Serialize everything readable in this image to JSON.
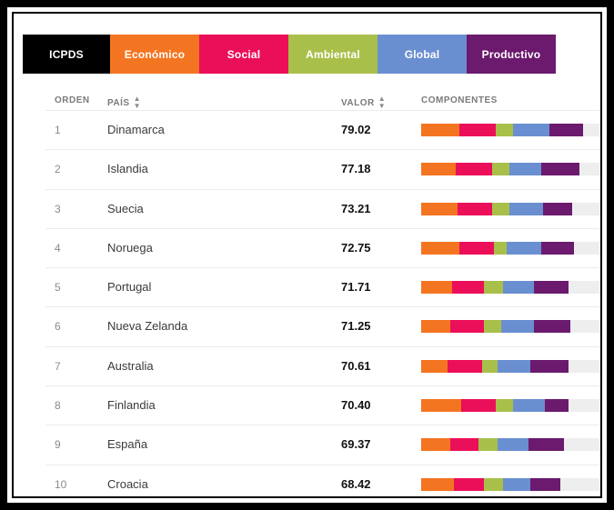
{
  "tabs": [
    {
      "label": "ICPDS",
      "color": "#000000",
      "width": 96
    },
    {
      "label": "Económico",
      "color": "#f47521",
      "width": 98
    },
    {
      "label": "Social",
      "color": "#eb0f5a",
      "width": 98
    },
    {
      "label": "Ambiental",
      "color": "#a8c04a",
      "width": 98
    },
    {
      "label": "Global",
      "color": "#6a8fd1",
      "width": 98
    },
    {
      "label": "Productivo",
      "color": "#6b1a6e",
      "width": 98
    }
  ],
  "headers": {
    "orden": "ORDEN",
    "pais": "PAÍS",
    "valor": "VALOR",
    "componentes": "COMPONENTES"
  },
  "component_colors": [
    "#f47521",
    "#eb0f5a",
    "#a8c04a",
    "#6a8fd1",
    "#6b1a6e"
  ],
  "rows": [
    {
      "rank": "1",
      "country": "Dinamarca",
      "value": "79.02",
      "components": [
        0.2,
        0.19,
        0.09,
        0.19,
        0.18
      ]
    },
    {
      "rank": "2",
      "country": "Islandia",
      "value": "77.18",
      "components": [
        0.18,
        0.19,
        0.09,
        0.17,
        0.2
      ]
    },
    {
      "rank": "3",
      "country": "Suecia",
      "value": "73.21",
      "components": [
        0.19,
        0.18,
        0.09,
        0.18,
        0.15
      ]
    },
    {
      "rank": "4",
      "country": "Noruega",
      "value": "72.75",
      "components": [
        0.2,
        0.18,
        0.07,
        0.18,
        0.17
      ]
    },
    {
      "rank": "5",
      "country": "Portugal",
      "value": "71.71",
      "components": [
        0.16,
        0.17,
        0.1,
        0.16,
        0.18
      ]
    },
    {
      "rank": "6",
      "country": "Nueva Zelanda",
      "value": "71.25",
      "components": [
        0.15,
        0.18,
        0.09,
        0.17,
        0.19
      ]
    },
    {
      "rank": "7",
      "country": "Australia",
      "value": "70.61",
      "components": [
        0.14,
        0.18,
        0.08,
        0.17,
        0.2
      ]
    },
    {
      "rank": "8",
      "country": "Finlandia",
      "value": "70.40",
      "components": [
        0.21,
        0.18,
        0.09,
        0.17,
        0.12
      ]
    },
    {
      "rank": "9",
      "country": "España",
      "value": "69.37",
      "components": [
        0.15,
        0.15,
        0.1,
        0.16,
        0.19
      ]
    },
    {
      "rank": "10",
      "country": "Croacia",
      "value": "68.42",
      "components": [
        0.17,
        0.16,
        0.1,
        0.14,
        0.16
      ]
    }
  ]
}
